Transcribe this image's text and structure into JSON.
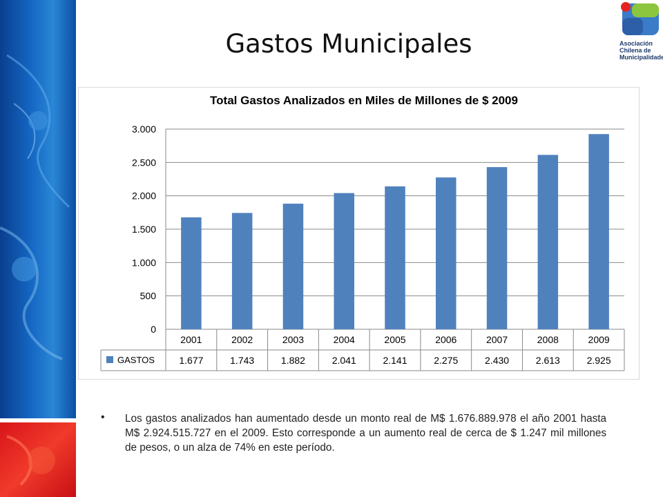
{
  "slide": {
    "title": "Gastos Municipales",
    "logo_text": [
      "Asociación",
      "Chilena de",
      "Municipalidades"
    ],
    "bullet": "•",
    "paragraph": "Los gastos analizados han aumentado desde un monto real de M$ 1.676.889.978 el año 2001 hasta M$ 2.924.515.727 en el 2009. Esto corresponde a un aumento real de cerca de $ 1.247 mil millones de pesos, o un alza de 74% en este período."
  },
  "colors": {
    "bar": "#4f81bd",
    "grid": "#888888",
    "side_blue": "#1466c2",
    "side_red": "#e0241c"
  },
  "chart_data": {
    "type": "bar",
    "title": "Total Gastos Analizados en Miles de Millones de $ 2009",
    "categories": [
      "2001",
      "2002",
      "2003",
      "2004",
      "2005",
      "2006",
      "2007",
      "2008",
      "2009"
    ],
    "series": [
      {
        "name": "GASTOS",
        "values": [
          1677,
          1743,
          1882,
          2041,
          2141,
          2275,
          2430,
          2613,
          2925
        ],
        "labels": [
          "1.677",
          "1.743",
          "1.882",
          "2.041",
          "2.141",
          "2.275",
          "2.430",
          "2.613",
          "2.925"
        ]
      }
    ],
    "y_ticks": [
      0,
      500,
      1000,
      1500,
      2000,
      2500,
      3000
    ],
    "y_tick_labels": [
      "0",
      "500",
      "1.000",
      "1.500",
      "2.000",
      "2.500",
      "3.000"
    ],
    "ylim": [
      0,
      3000
    ],
    "grid": true,
    "legend": "data-table"
  }
}
